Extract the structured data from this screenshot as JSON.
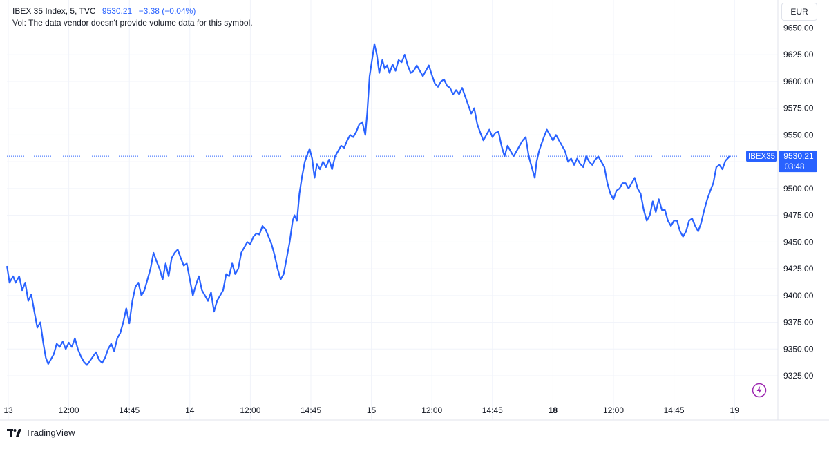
{
  "legend": {
    "symbol_line": "IBEX 35 Index, 5, TVC",
    "last_value": "9530.21",
    "change": "−3.38 (−0.04%)",
    "volume_note": "Vol: The data vendor doesn't provide volume data for this symbol."
  },
  "currency_button": "EUR",
  "price_tag": {
    "ticker": "IBEX35",
    "price": "9530.21",
    "countdown": "03:48"
  },
  "footer": {
    "brand": "TradingView"
  },
  "colors": {
    "line": "#2962ff",
    "grid": "#f0f3fa",
    "axis_text": "#131722",
    "price_line": "#2962ff",
    "bolt": "#9c27b0"
  },
  "chart_data": {
    "type": "line",
    "title": "",
    "series": [
      {
        "name": "IBEX 35 Index",
        "values": []
      }
    ],
    "ylim": [
      9305,
      9655
    ],
    "y_ticks": [
      9325,
      9350,
      9375,
      9400,
      9425,
      9450,
      9475,
      9500,
      9525,
      9550,
      9575,
      9600,
      9625,
      9650
    ],
    "x_range": [
      0,
      13.85
    ],
    "x_ticks": [
      {
        "x": 0.0,
        "label": "13",
        "bold": false
      },
      {
        "x": 1.0,
        "label": "12:00",
        "bold": false
      },
      {
        "x": 2.0,
        "label": "14:45",
        "bold": false
      },
      {
        "x": 3.0,
        "label": "14",
        "bold": false
      },
      {
        "x": 4.0,
        "label": "12:00",
        "bold": false
      },
      {
        "x": 5.0,
        "label": "14:45",
        "bold": false
      },
      {
        "x": 6.0,
        "label": "15",
        "bold": false
      },
      {
        "x": 7.0,
        "label": "12:00",
        "bold": false
      },
      {
        "x": 8.0,
        "label": "14:45",
        "bold": false
      },
      {
        "x": 9.0,
        "label": "18",
        "bold": true
      },
      {
        "x": 10.0,
        "label": "12:00",
        "bold": false
      },
      {
        "x": 11.0,
        "label": "14:45",
        "bold": false
      },
      {
        "x": 12.0,
        "label": "19",
        "bold": false
      }
    ],
    "points": [
      [
        -0.02,
        9427
      ],
      [
        0.02,
        9412
      ],
      [
        0.08,
        9418
      ],
      [
        0.12,
        9412
      ],
      [
        0.18,
        9418
      ],
      [
        0.23,
        9405
      ],
      [
        0.28,
        9412
      ],
      [
        0.33,
        9395
      ],
      [
        0.38,
        9401
      ],
      [
        0.43,
        9385
      ],
      [
        0.48,
        9370
      ],
      [
        0.53,
        9375
      ],
      [
        0.58,
        9355
      ],
      [
        0.62,
        9342
      ],
      [
        0.66,
        9336
      ],
      [
        0.7,
        9340
      ],
      [
        0.75,
        9345
      ],
      [
        0.8,
        9355
      ],
      [
        0.85,
        9352
      ],
      [
        0.9,
        9357
      ],
      [
        0.95,
        9350
      ],
      [
        1.0,
        9356
      ],
      [
        1.05,
        9352
      ],
      [
        1.1,
        9360
      ],
      [
        1.15,
        9350
      ],
      [
        1.2,
        9343
      ],
      [
        1.25,
        9338
      ],
      [
        1.3,
        9335
      ],
      [
        1.35,
        9339
      ],
      [
        1.4,
        9343
      ],
      [
        1.45,
        9347
      ],
      [
        1.5,
        9340
      ],
      [
        1.55,
        9337
      ],
      [
        1.6,
        9342
      ],
      [
        1.65,
        9350
      ],
      [
        1.7,
        9355
      ],
      [
        1.75,
        9348
      ],
      [
        1.8,
        9360
      ],
      [
        1.85,
        9365
      ],
      [
        1.9,
        9375
      ],
      [
        1.95,
        9388
      ],
      [
        2.0,
        9374
      ],
      [
        2.05,
        9395
      ],
      [
        2.1,
        9408
      ],
      [
        2.15,
        9412
      ],
      [
        2.2,
        9400
      ],
      [
        2.25,
        9405
      ],
      [
        2.3,
        9415
      ],
      [
        2.35,
        9425
      ],
      [
        2.4,
        9440
      ],
      [
        2.45,
        9432
      ],
      [
        2.5,
        9425
      ],
      [
        2.55,
        9415
      ],
      [
        2.6,
        9430
      ],
      [
        2.65,
        9418
      ],
      [
        2.7,
        9435
      ],
      [
        2.75,
        9440
      ],
      [
        2.8,
        9443
      ],
      [
        2.85,
        9435
      ],
      [
        2.9,
        9428
      ],
      [
        2.95,
        9430
      ],
      [
        3.0,
        9415
      ],
      [
        3.05,
        9400
      ],
      [
        3.1,
        9410
      ],
      [
        3.15,
        9418
      ],
      [
        3.2,
        9405
      ],
      [
        3.25,
        9400
      ],
      [
        3.3,
        9395
      ],
      [
        3.35,
        9403
      ],
      [
        3.4,
        9385
      ],
      [
        3.45,
        9395
      ],
      [
        3.5,
        9400
      ],
      [
        3.55,
        9405
      ],
      [
        3.6,
        9420
      ],
      [
        3.65,
        9418
      ],
      [
        3.7,
        9430
      ],
      [
        3.75,
        9420
      ],
      [
        3.8,
        9425
      ],
      [
        3.85,
        9440
      ],
      [
        3.9,
        9445
      ],
      [
        3.95,
        9450
      ],
      [
        4.0,
        9448
      ],
      [
        4.05,
        9455
      ],
      [
        4.1,
        9458
      ],
      [
        4.15,
        9457
      ],
      [
        4.2,
        9465
      ],
      [
        4.25,
        9462
      ],
      [
        4.3,
        9455
      ],
      [
        4.35,
        9448
      ],
      [
        4.4,
        9438
      ],
      [
        4.45,
        9425
      ],
      [
        4.5,
        9415
      ],
      [
        4.55,
        9420
      ],
      [
        4.6,
        9435
      ],
      [
        4.65,
        9450
      ],
      [
        4.7,
        9470
      ],
      [
        4.73,
        9475
      ],
      [
        4.77,
        9470
      ],
      [
        4.81,
        9495
      ],
      [
        4.85,
        9510
      ],
      [
        4.9,
        9525
      ],
      [
        4.95,
        9533
      ],
      [
        4.98,
        9537
      ],
      [
        5.02,
        9528
      ],
      [
        5.06,
        9510
      ],
      [
        5.1,
        9523
      ],
      [
        5.15,
        9518
      ],
      [
        5.2,
        9525
      ],
      [
        5.25,
        9520
      ],
      [
        5.3,
        9527
      ],
      [
        5.35,
        9518
      ],
      [
        5.4,
        9530
      ],
      [
        5.45,
        9535
      ],
      [
        5.5,
        9540
      ],
      [
        5.55,
        9538
      ],
      [
        5.6,
        9545
      ],
      [
        5.65,
        9550
      ],
      [
        5.7,
        9548
      ],
      [
        5.75,
        9553
      ],
      [
        5.8,
        9560
      ],
      [
        5.85,
        9562
      ],
      [
        5.9,
        9550
      ],
      [
        5.93,
        9570
      ],
      [
        5.97,
        9605
      ],
      [
        6.01,
        9620
      ],
      [
        6.05,
        9635
      ],
      [
        6.09,
        9625
      ],
      [
        6.13,
        9608
      ],
      [
        6.18,
        9620
      ],
      [
        6.22,
        9612
      ],
      [
        6.26,
        9615
      ],
      [
        6.3,
        9608
      ],
      [
        6.35,
        9616
      ],
      [
        6.4,
        9610
      ],
      [
        6.45,
        9620
      ],
      [
        6.5,
        9618
      ],
      [
        6.55,
        9625
      ],
      [
        6.6,
        9615
      ],
      [
        6.65,
        9608
      ],
      [
        6.7,
        9610
      ],
      [
        6.75,
        9615
      ],
      [
        6.8,
        9610
      ],
      [
        6.85,
        9605
      ],
      [
        6.9,
        9610
      ],
      [
        6.95,
        9615
      ],
      [
        7.0,
        9606
      ],
      [
        7.05,
        9598
      ],
      [
        7.1,
        9595
      ],
      [
        7.15,
        9600
      ],
      [
        7.2,
        9602
      ],
      [
        7.25,
        9596
      ],
      [
        7.3,
        9594
      ],
      [
        7.35,
        9588
      ],
      [
        7.4,
        9592
      ],
      [
        7.45,
        9588
      ],
      [
        7.5,
        9594
      ],
      [
        7.55,
        9586
      ],
      [
        7.6,
        9578
      ],
      [
        7.65,
        9570
      ],
      [
        7.7,
        9575
      ],
      [
        7.75,
        9560
      ],
      [
        7.8,
        9552
      ],
      [
        7.85,
        9545
      ],
      [
        7.9,
        9550
      ],
      [
        7.95,
        9555
      ],
      [
        8.0,
        9548
      ],
      [
        8.05,
        9552
      ],
      [
        8.1,
        9553
      ],
      [
        8.15,
        9540
      ],
      [
        8.2,
        9530
      ],
      [
        8.25,
        9540
      ],
      [
        8.3,
        9535
      ],
      [
        8.35,
        9530
      ],
      [
        8.4,
        9535
      ],
      [
        8.45,
        9540
      ],
      [
        8.5,
        9545
      ],
      [
        8.55,
        9548
      ],
      [
        8.6,
        9530
      ],
      [
        8.65,
        9520
      ],
      [
        8.7,
        9510
      ],
      [
        8.73,
        9525
      ],
      [
        8.77,
        9535
      ],
      [
        8.8,
        9540
      ],
      [
        8.85,
        9548
      ],
      [
        8.9,
        9555
      ],
      [
        8.95,
        9550
      ],
      [
        9.0,
        9545
      ],
      [
        9.05,
        9550
      ],
      [
        9.1,
        9545
      ],
      [
        9.15,
        9540
      ],
      [
        9.2,
        9535
      ],
      [
        9.25,
        9525
      ],
      [
        9.3,
        9528
      ],
      [
        9.35,
        9522
      ],
      [
        9.4,
        9528
      ],
      [
        9.45,
        9523
      ],
      [
        9.5,
        9520
      ],
      [
        9.55,
        9530
      ],
      [
        9.6,
        9525
      ],
      [
        9.65,
        9522
      ],
      [
        9.7,
        9527
      ],
      [
        9.75,
        9530
      ],
      [
        9.8,
        9525
      ],
      [
        9.85,
        9520
      ],
      [
        9.9,
        9505
      ],
      [
        9.95,
        9495
      ],
      [
        10.0,
        9490
      ],
      [
        10.05,
        9498
      ],
      [
        10.1,
        9500
      ],
      [
        10.15,
        9505
      ],
      [
        10.2,
        9505
      ],
      [
        10.25,
        9500
      ],
      [
        10.3,
        9505
      ],
      [
        10.35,
        9510
      ],
      [
        10.4,
        9500
      ],
      [
        10.45,
        9495
      ],
      [
        10.5,
        9480
      ],
      [
        10.55,
        9470
      ],
      [
        10.6,
        9475
      ],
      [
        10.65,
        9488
      ],
      [
        10.7,
        9478
      ],
      [
        10.75,
        9490
      ],
      [
        10.8,
        9480
      ],
      [
        10.85,
        9480
      ],
      [
        10.9,
        9470
      ],
      [
        10.95,
        9465
      ],
      [
        11.0,
        9470
      ],
      [
        11.05,
        9470
      ],
      [
        11.1,
        9460
      ],
      [
        11.15,
        9455
      ],
      [
        11.2,
        9460
      ],
      [
        11.25,
        9470
      ],
      [
        11.3,
        9472
      ],
      [
        11.35,
        9465
      ],
      [
        11.4,
        9460
      ],
      [
        11.45,
        9468
      ],
      [
        11.5,
        9480
      ],
      [
        11.55,
        9490
      ],
      [
        11.6,
        9498
      ],
      [
        11.65,
        9505
      ],
      [
        11.7,
        9520
      ],
      [
        11.75,
        9522
      ],
      [
        11.8,
        9518
      ],
      [
        11.85,
        9526
      ],
      [
        11.92,
        9530
      ]
    ]
  }
}
